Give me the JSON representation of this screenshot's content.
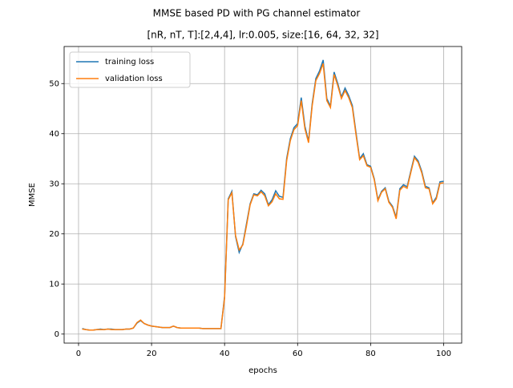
{
  "chart_data": {
    "type": "line",
    "title": "MMSE based PD with PG channel estimator",
    "subtitle": "[nR, nT, T]:[2,4,4], lr:0.005, size:[16, 64, 32, 32]",
    "xlabel": "epochs",
    "ylabel": "MMSE",
    "x": [
      1,
      2,
      3,
      4,
      5,
      6,
      7,
      8,
      9,
      10,
      11,
      12,
      13,
      14,
      15,
      16,
      17,
      18,
      19,
      20,
      21,
      22,
      23,
      24,
      25,
      26,
      27,
      28,
      29,
      30,
      31,
      32,
      33,
      34,
      35,
      36,
      37,
      38,
      39,
      40,
      41,
      42,
      43,
      44,
      45,
      46,
      47,
      48,
      49,
      50,
      51,
      52,
      53,
      54,
      55,
      56,
      57,
      58,
      59,
      60,
      61,
      62,
      63,
      64,
      65,
      66,
      67,
      68,
      69,
      70,
      71,
      72,
      73,
      74,
      75,
      76,
      77,
      78,
      79,
      80,
      81,
      82,
      83,
      84,
      85,
      86,
      87,
      88,
      89,
      90,
      91,
      92,
      93,
      94,
      95,
      96,
      97,
      98,
      99,
      100
    ],
    "series": [
      {
        "name": "training loss",
        "color": "#1f77b4",
        "values": [
          1.1,
          0.9,
          0.8,
          0.8,
          0.9,
          1.0,
          0.9,
          1.0,
          1.0,
          0.9,
          0.9,
          0.9,
          1.0,
          1.0,
          1.2,
          2.2,
          2.7,
          2.1,
          1.8,
          1.6,
          1.5,
          1.4,
          1.3,
          1.3,
          1.3,
          1.6,
          1.3,
          1.2,
          1.2,
          1.2,
          1.2,
          1.2,
          1.2,
          1.1,
          1.1,
          1.1,
          1.1,
          1.1,
          1.1,
          7.5,
          27.0,
          28.5,
          19.5,
          16.3,
          18.0,
          22.0,
          26.0,
          28.0,
          27.8,
          28.7,
          28.0,
          25.8,
          26.8,
          28.6,
          27.5,
          27.3,
          35.0,
          39.0,
          41.2,
          42.0,
          47.2,
          41.5,
          38.5,
          46.0,
          51.0,
          52.5,
          54.7,
          47.0,
          45.5,
          52.3,
          50.0,
          47.3,
          49.1,
          47.6,
          45.6,
          40.2,
          35.0,
          36.0,
          33.8,
          33.5,
          31.0,
          26.8,
          28.5,
          29.2,
          26.5,
          25.5,
          23.3,
          29.0,
          29.8,
          29.4,
          32.5,
          35.5,
          34.6,
          32.5,
          29.5,
          29.2,
          26.2,
          27.3,
          30.4,
          30.5
        ]
      },
      {
        "name": "validation loss",
        "color": "#ff7f0e",
        "values": [
          1.0,
          0.9,
          0.8,
          0.8,
          0.9,
          0.9,
          0.9,
          1.0,
          0.9,
          0.9,
          0.9,
          0.9,
          1.0,
          1.0,
          1.2,
          2.3,
          2.8,
          2.1,
          1.8,
          1.6,
          1.5,
          1.4,
          1.3,
          1.3,
          1.3,
          1.6,
          1.3,
          1.2,
          1.2,
          1.2,
          1.2,
          1.2,
          1.2,
          1.1,
          1.1,
          1.1,
          1.1,
          1.1,
          1.1,
          7.2,
          26.8,
          28.2,
          19.7,
          16.8,
          17.8,
          21.6,
          25.8,
          27.8,
          27.6,
          28.4,
          27.6,
          25.6,
          26.4,
          28.0,
          27.0,
          26.9,
          34.6,
          38.6,
          40.8,
          41.6,
          46.6,
          41.0,
          38.2,
          45.6,
          50.6,
          52.0,
          54.0,
          46.6,
          45.2,
          51.8,
          49.6,
          47.0,
          48.6,
          47.2,
          45.2,
          39.8,
          34.8,
          35.6,
          33.6,
          33.3,
          30.8,
          26.6,
          28.3,
          29.0,
          26.3,
          25.3,
          23.0,
          28.7,
          29.5,
          29.1,
          32.2,
          35.2,
          34.3,
          32.2,
          29.2,
          29.0,
          26.0,
          27.0,
          30.1,
          30.2
        ]
      }
    ],
    "xlim": [
      -3.95,
      104.95
    ],
    "xticks": [
      0,
      20,
      40,
      60,
      80,
      100
    ],
    "ylim": [
      -1.8,
      57.4
    ],
    "yticks": [
      0,
      10,
      20,
      30,
      40,
      50
    ],
    "grid": true,
    "legend": "upper left"
  }
}
